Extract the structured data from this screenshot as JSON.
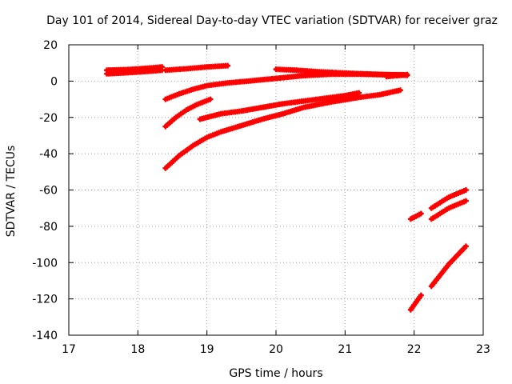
{
  "chart_data": {
    "type": "scatter",
    "title": "Day 101 of 2014, Sidereal Day-to-day VTEC variation (SDTVAR) for receiver graz",
    "xlabel": "GPS time / hours",
    "ylabel": "SDTVAR / TECUs",
    "xlim": [
      17,
      23
    ],
    "ylim": [
      -140,
      20
    ],
    "xticks": [
      17,
      18,
      19,
      20,
      21,
      22,
      23
    ],
    "yticks": [
      -140,
      -120,
      -100,
      -80,
      -60,
      -40,
      -20,
      0,
      20
    ],
    "grid": true,
    "marker": "+",
    "color": "#ff0000",
    "series": [
      {
        "x": [
          17.55,
          17.8,
          18.0,
          18.2,
          18.35
        ],
        "y": [
          6,
          6.3,
          6.7,
          7.3,
          7.8
        ]
      },
      {
        "x": [
          17.55,
          17.8,
          18.0,
          18.2,
          18.35
        ],
        "y": [
          4,
          4.5,
          5,
          5.5,
          6
        ]
      },
      {
        "x": [
          18.4,
          18.7,
          19.0,
          19.3
        ],
        "y": [
          6,
          6.8,
          7.8,
          8.5
        ]
      },
      {
        "x": [
          18.4,
          18.6,
          18.8,
          19.0,
          19.3,
          19.6,
          20.0,
          20.4,
          20.8,
          21.2,
          21.6,
          21.9
        ],
        "y": [
          -10,
          -7,
          -4.5,
          -2.5,
          -1,
          0,
          1.5,
          3,
          3.8,
          3.8,
          3.5,
          3.5
        ]
      },
      {
        "x": [
          20.0,
          20.3,
          20.6,
          20.9,
          21.2,
          21.5,
          21.9
        ],
        "y": [
          6.5,
          6,
          5.2,
          4.6,
          4.1,
          3.7,
          3.2
        ]
      },
      {
        "x": [
          21.6,
          21.75,
          21.9
        ],
        "y": [
          2.5,
          3,
          3.5
        ]
      },
      {
        "x": [
          18.4,
          18.55,
          18.7,
          18.85,
          19.05
        ],
        "y": [
          -25,
          -20,
          -16,
          -13,
          -10
        ]
      },
      {
        "x": [
          18.9,
          19.2,
          19.5,
          19.8,
          20.1,
          20.4,
          20.7,
          21.0,
          21.2
        ],
        "y": [
          -21,
          -18,
          -16.5,
          -14.5,
          -12.5,
          -11,
          -9.5,
          -8,
          -6.5
        ]
      },
      {
        "x": [
          18.4,
          18.6,
          18.8,
          19.0,
          19.2,
          19.5,
          19.8,
          20.1,
          20.4,
          20.8,
          21.2,
          21.5,
          21.8
        ],
        "y": [
          -48,
          -41,
          -35.5,
          -31,
          -28,
          -24.5,
          -21,
          -18,
          -14.5,
          -11.5,
          -9,
          -7.5,
          -5
        ]
      },
      {
        "x": [
          21.95,
          22.1
        ],
        "y": [
          -76,
          -73
        ]
      },
      {
        "x": [
          22.25,
          22.5,
          22.75
        ],
        "y": [
          -70,
          -64,
          -60
        ]
      },
      {
        "x": [
          22.25,
          22.5,
          22.75
        ],
        "y": [
          -76,
          -70,
          -66
        ]
      },
      {
        "x": [
          21.95,
          22.1
        ],
        "y": [
          -126,
          -118
        ]
      },
      {
        "x": [
          22.25,
          22.5,
          22.75
        ],
        "y": [
          -113,
          -101,
          -91
        ]
      }
    ]
  }
}
